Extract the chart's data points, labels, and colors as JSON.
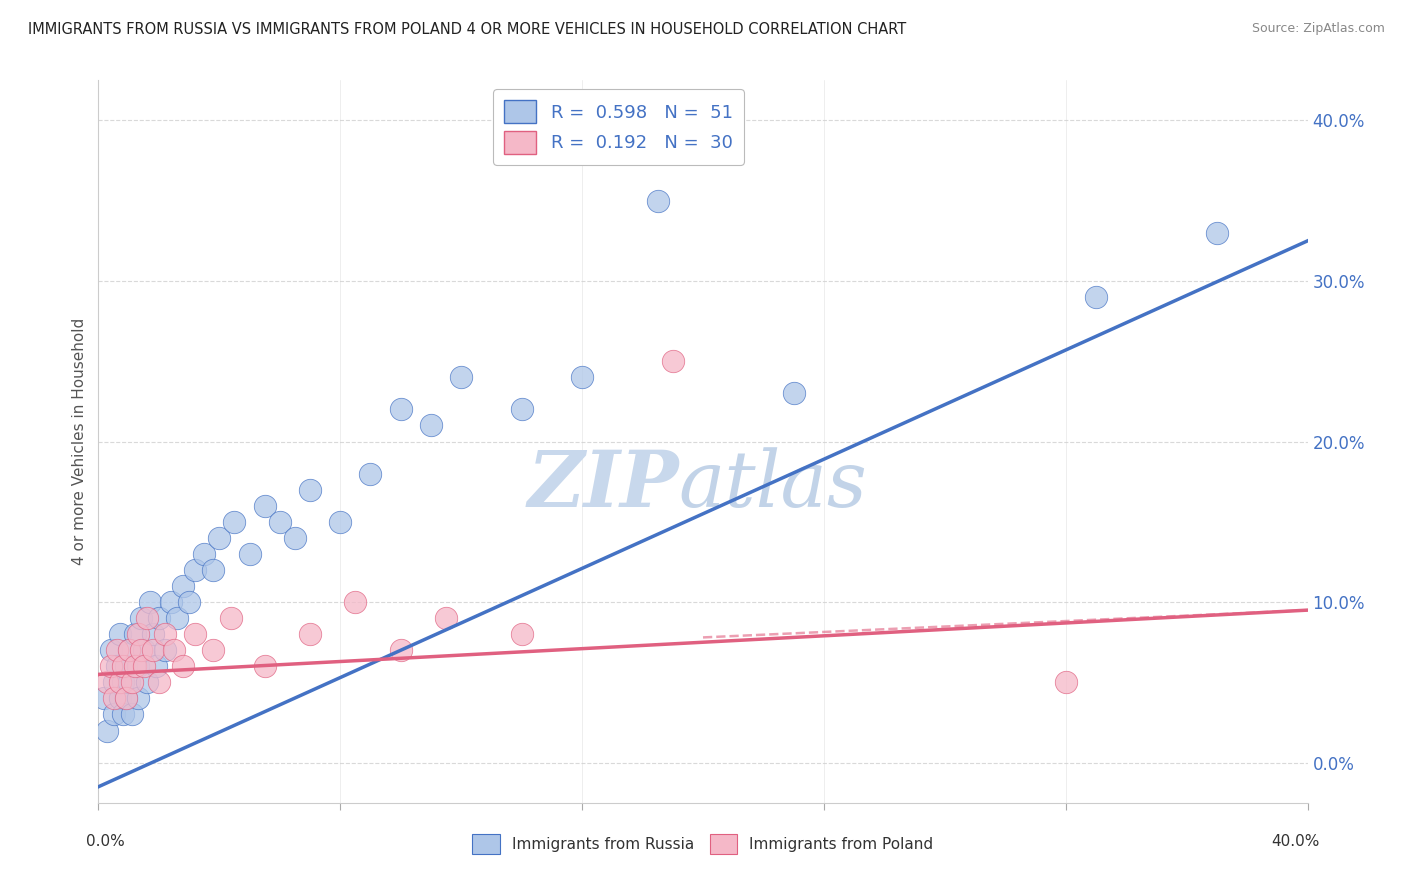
{
  "title": "IMMIGRANTS FROM RUSSIA VS IMMIGRANTS FROM POLAND 4 OR MORE VEHICLES IN HOUSEHOLD CORRELATION CHART",
  "source": "Source: ZipAtlas.com",
  "ylabel": "4 or more Vehicles in Household",
  "ytick_labels": [
    "0.0%",
    "10.0%",
    "20.0%",
    "30.0%",
    "40.0%"
  ],
  "ytick_values": [
    0,
    0.1,
    0.2,
    0.3,
    0.4
  ],
  "xrange": [
    0,
    0.4
  ],
  "yrange": [
    -0.025,
    0.425
  ],
  "russia_color": "#aec6e8",
  "russia_line_color": "#4472c4",
  "poland_color": "#f5b8c8",
  "poland_line_color": "#e06080",
  "background_color": "#ffffff",
  "grid_color": "#d0d0d0",
  "russia_x": [
    0.002,
    0.003,
    0.004,
    0.005,
    0.005,
    0.006,
    0.007,
    0.007,
    0.008,
    0.008,
    0.009,
    0.009,
    0.01,
    0.01,
    0.011,
    0.012,
    0.013,
    0.013,
    0.014,
    0.015,
    0.016,
    0.017,
    0.018,
    0.019,
    0.02,
    0.022,
    0.024,
    0.026,
    0.028,
    0.03,
    0.032,
    0.035,
    0.038,
    0.04,
    0.045,
    0.05,
    0.055,
    0.06,
    0.065,
    0.07,
    0.08,
    0.09,
    0.1,
    0.11,
    0.12,
    0.14,
    0.16,
    0.185,
    0.23,
    0.33,
    0.37
  ],
  "russia_y": [
    0.04,
    0.02,
    0.07,
    0.05,
    0.03,
    0.06,
    0.04,
    0.08,
    0.05,
    0.03,
    0.06,
    0.04,
    0.07,
    0.05,
    0.03,
    0.08,
    0.06,
    0.04,
    0.09,
    0.07,
    0.05,
    0.1,
    0.08,
    0.06,
    0.09,
    0.07,
    0.1,
    0.09,
    0.11,
    0.1,
    0.12,
    0.13,
    0.12,
    0.14,
    0.15,
    0.13,
    0.16,
    0.15,
    0.14,
    0.17,
    0.15,
    0.18,
    0.22,
    0.21,
    0.24,
    0.22,
    0.24,
    0.35,
    0.23,
    0.29,
    0.33
  ],
  "poland_x": [
    0.003,
    0.004,
    0.005,
    0.006,
    0.007,
    0.008,
    0.009,
    0.01,
    0.011,
    0.012,
    0.013,
    0.014,
    0.015,
    0.016,
    0.018,
    0.02,
    0.022,
    0.025,
    0.028,
    0.032,
    0.038,
    0.044,
    0.055,
    0.07,
    0.085,
    0.1,
    0.115,
    0.14,
    0.19,
    0.32
  ],
  "poland_y": [
    0.05,
    0.06,
    0.04,
    0.07,
    0.05,
    0.06,
    0.04,
    0.07,
    0.05,
    0.06,
    0.08,
    0.07,
    0.06,
    0.09,
    0.07,
    0.05,
    0.08,
    0.07,
    0.06,
    0.08,
    0.07,
    0.09,
    0.06,
    0.08,
    0.1,
    0.07,
    0.09,
    0.08,
    0.25,
    0.05
  ],
  "russia_trend_x0": 0.0,
  "russia_trend_y0": -0.015,
  "russia_trend_x1": 0.4,
  "russia_trend_y1": 0.325,
  "poland_trend_x0": 0.0,
  "poland_trend_y0": 0.055,
  "poland_trend_x1": 0.4,
  "poland_trend_y1": 0.095
}
